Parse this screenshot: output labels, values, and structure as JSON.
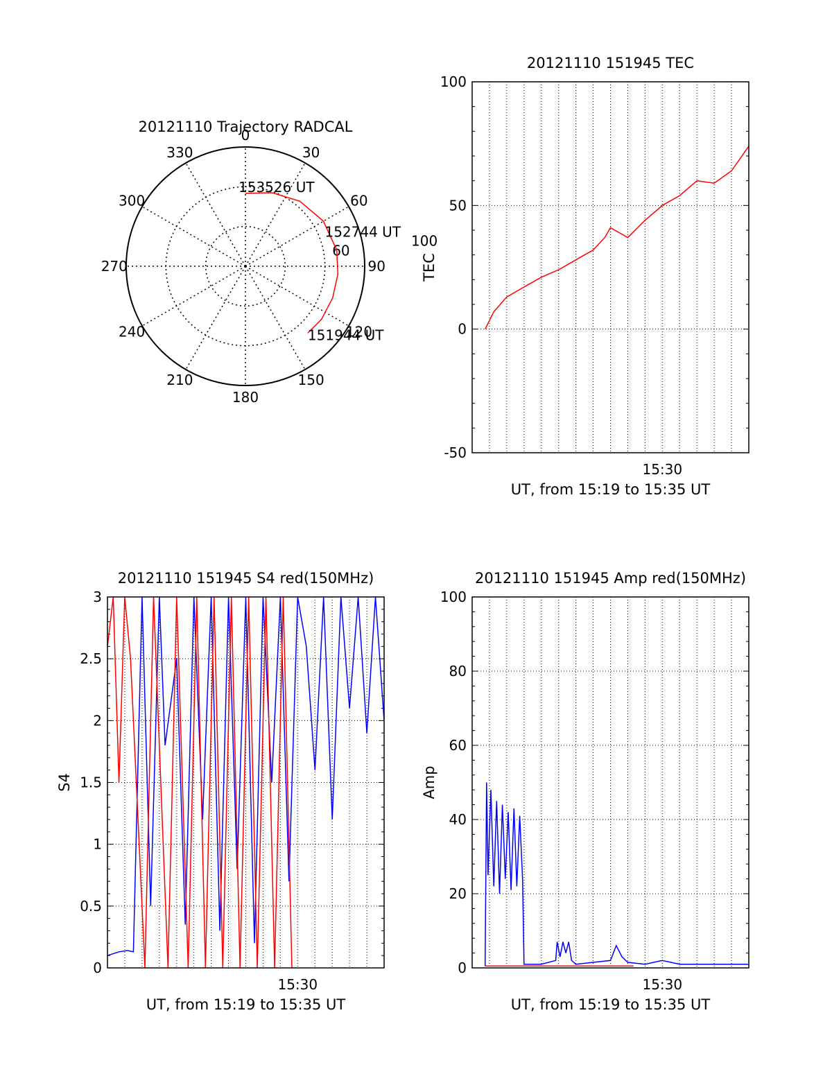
{
  "colors": {
    "red": "#ff0000",
    "blue": "#0000ff",
    "axis": "#000000",
    "grid": "#000000"
  },
  "chart_data": [
    {
      "type": "polar",
      "title": "20121110 Trajectory RADCAL",
      "angle_labels": [
        "0",
        "30",
        "60",
        "90",
        "120",
        "150",
        "180",
        "210",
        "240",
        "270",
        "300",
        "330"
      ],
      "rings": [
        30,
        60
      ],
      "ring_labels": [
        "60",
        "100"
      ],
      "rmax": 90,
      "series": [
        {
          "color": "#ff0000",
          "points": [
            {
              "az": 0,
              "zd": 55
            },
            {
              "az": 20,
              "zd": 59
            },
            {
              "az": 40,
              "zd": 64
            },
            {
              "az": 60,
              "zd": 68
            },
            {
              "az": 80,
              "zd": 70
            },
            {
              "az": 95,
              "zd": 70
            },
            {
              "az": 110,
              "zd": 70
            },
            {
              "az": 125,
              "zd": 70
            },
            {
              "az": 137,
              "zd": 69
            }
          ]
        }
      ],
      "annotations": [
        {
          "text": "153526 UT",
          "az": 0,
          "zd": 55
        },
        {
          "text": "152744 UT",
          "az": 82,
          "zd": 70
        },
        {
          "text": "151944 UT",
          "az": 137,
          "zd": 69
        }
      ]
    },
    {
      "type": "line",
      "title": "20121110 151945 TEC",
      "ylabel": "TEC",
      "xlabel": "UT, from 15:19 to 15:35 UT",
      "xlim": [
        "15:19:00",
        "15:35:00"
      ],
      "ylim": [
        -50,
        100
      ],
      "yticks": [
        -50,
        0,
        50,
        100
      ],
      "xtick_labels": [
        {
          "x": "15:30:00",
          "label": "15:30"
        }
      ],
      "grid": true,
      "series": [
        {
          "color": "#ff0000",
          "x": [
            "15:19:45",
            "15:20:15",
            "15:21:00",
            "15:22:00",
            "15:23:00",
            "15:24:00",
            "15:25:00",
            "15:26:00",
            "15:26:40",
            "15:27:00",
            "15:28:00",
            "15:29:00",
            "15:30:00",
            "15:31:00",
            "15:32:00",
            "15:33:00",
            "15:34:00",
            "15:35:00"
          ],
          "y": [
            0,
            7,
            13,
            17,
            21,
            24,
            28,
            32,
            37,
            41,
            37,
            44,
            50,
            54,
            60,
            59,
            64,
            74
          ]
        }
      ]
    },
    {
      "type": "line",
      "title": "20121110 151945 S4 red(150MHz)",
      "ylabel": "S4",
      "xlabel": "UT, from 15:19 to 15:35 UT",
      "xlim": [
        "15:19:00",
        "15:35:00"
      ],
      "ylim": [
        0,
        3
      ],
      "yticks": [
        0,
        0.5,
        1,
        1.5,
        2,
        2.5,
        3
      ],
      "ytick_labels": [
        "0",
        "0.5",
        "1",
        "1.5",
        "2",
        "2.5",
        "3"
      ],
      "xtick_labels": [
        {
          "x": "15:30:00",
          "label": "15:30"
        }
      ],
      "grid": true,
      "series": [
        {
          "color": "#0000ff",
          "x": [
            "15:19:00",
            "15:19:40",
            "15:20:10",
            "15:20:30",
            "15:21:00",
            "15:21:30",
            "15:22:00",
            "15:22:20",
            "15:23:00",
            "15:23:30",
            "15:24:00",
            "15:24:30",
            "15:25:00",
            "15:25:30",
            "15:26:00",
            "15:26:30",
            "15:27:00",
            "15:27:30",
            "15:28:00",
            "15:28:30",
            "15:29:00",
            "15:29:30",
            "15:30:00",
            "15:30:30",
            "15:31:00",
            "15:31:30",
            "15:32:00",
            "15:32:30",
            "15:33:00",
            "15:33:30",
            "15:34:00",
            "15:34:30",
            "15:35:00"
          ],
          "y": [
            0.1,
            0.13,
            0.14,
            0.13,
            3,
            0.5,
            3,
            1.8,
            2.5,
            0.35,
            3,
            1.2,
            3,
            0.3,
            3,
            0.8,
            3,
            0.2,
            3,
            1.5,
            3,
            0.7,
            3,
            2.6,
            1.6,
            3,
            1.2,
            3,
            2.1,
            3,
            1.9,
            3,
            2
          ]
        },
        {
          "color": "#ff0000",
          "x": [
            "15:19:00",
            "15:19:20",
            "15:19:40",
            "15:20:00",
            "15:20:20",
            "15:21:10",
            "15:21:40",
            "15:22:30",
            "15:23:00",
            "15:23:40",
            "15:24:10",
            "15:24:40",
            "15:25:10",
            "15:25:40",
            "15:26:10",
            "15:26:40",
            "15:27:10",
            "15:27:40",
            "15:28:10",
            "15:28:40",
            "15:29:10",
            "15:29:40"
          ],
          "y": [
            2.6,
            3,
            1.5,
            3,
            2.5,
            0,
            3,
            0,
            3,
            0,
            3,
            0,
            3,
            0,
            3,
            0,
            3,
            0,
            3,
            0,
            3,
            0
          ]
        }
      ]
    },
    {
      "type": "line",
      "title": "20121110 151945 Amp red(150MHz)",
      "ylabel": "Amp",
      "xlabel": "UT, from 15:19 to 15:35 UT",
      "xlim": [
        "15:19:00",
        "15:35:00"
      ],
      "ylim": [
        0,
        100
      ],
      "yticks": [
        0,
        20,
        40,
        60,
        80,
        100
      ],
      "xtick_labels": [
        {
          "x": "15:30:00",
          "label": "15:30"
        }
      ],
      "grid": true,
      "series": [
        {
          "color": "#0000ff",
          "x": [
            "15:19:45",
            "15:19:50",
            "15:19:55",
            "15:20:05",
            "15:20:15",
            "15:20:25",
            "15:20:35",
            "15:20:45",
            "15:20:55",
            "15:21:05",
            "15:21:15",
            "15:21:25",
            "15:21:35",
            "15:21:45",
            "15:21:55",
            "15:22:00",
            "15:23:00",
            "15:23:50",
            "15:23:55",
            "15:24:05",
            "15:24:15",
            "15:24:25",
            "15:24:35",
            "15:24:45",
            "15:25:00",
            "15:26:00",
            "15:27:00",
            "15:27:20",
            "15:27:40",
            "15:28:00",
            "15:29:00",
            "15:30:00",
            "15:31:00",
            "15:32:00",
            "15:33:00",
            "15:34:00",
            "15:35:00"
          ],
          "y": [
            0.5,
            50,
            25,
            48,
            22,
            45,
            20,
            44,
            24,
            42,
            21,
            43,
            22,
            41,
            24,
            1,
            1,
            2,
            7,
            3,
            7,
            4,
            7,
            2,
            1,
            1.5,
            2,
            6,
            3,
            1.5,
            1,
            2,
            1,
            1,
            1,
            1,
            1
          ]
        },
        {
          "color": "#ff0000",
          "x": [
            "15:19:45",
            "15:21:55",
            "15:24:00",
            "15:24:30",
            "15:28:00",
            "15:28:20"
          ],
          "y": [
            0.5,
            0.5,
            0.5,
            0.5,
            0.5,
            0.5
          ]
        }
      ]
    }
  ]
}
